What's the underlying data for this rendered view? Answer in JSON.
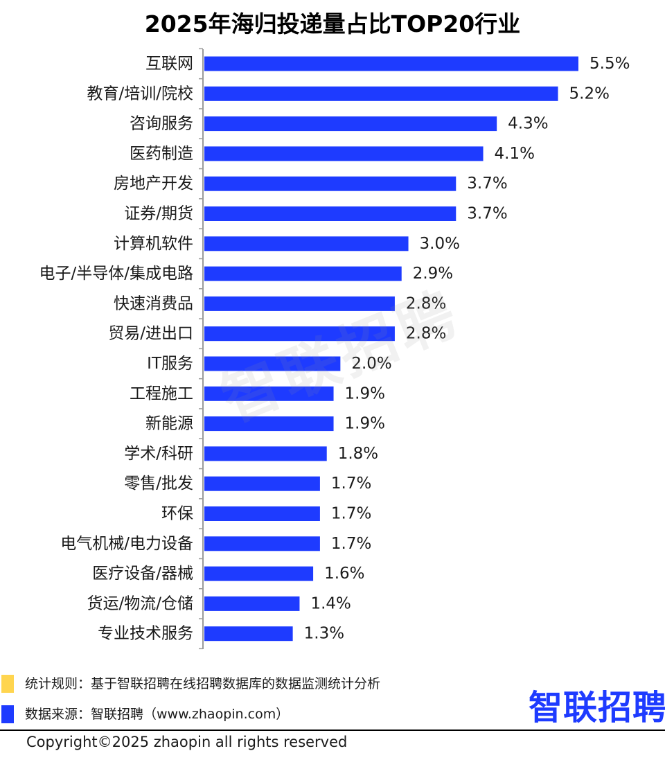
{
  "chart_data": {
    "type": "bar",
    "orientation": "horizontal",
    "title": "2025年海归投递量占比TOP20行业",
    "categories": [
      "互联网",
      "教育/培训/院校",
      "咨询服务",
      "医药制造",
      "房地产开发",
      "证券/期货",
      "计算机软件",
      "电子/半导体/集成电路",
      "快速消费品",
      "贸易/进出口",
      "IT服务",
      "工程施工",
      "新能源",
      "学术/科研",
      "零售/批发",
      "环保",
      "电气机械/电力设备",
      "医疗设备/器械",
      "货运/物流/仓储",
      "专业技术服务"
    ],
    "values": [
      5.5,
      5.2,
      4.3,
      4.1,
      3.7,
      3.7,
      3.0,
      2.9,
      2.8,
      2.8,
      2.0,
      1.9,
      1.9,
      1.8,
      1.7,
      1.7,
      1.7,
      1.6,
      1.4,
      1.3
    ],
    "value_labels": [
      "5.5%",
      "5.2%",
      "4.3%",
      "4.1%",
      "3.7%",
      "3.7%",
      "3.0%",
      "2.9%",
      "2.8%",
      "2.8%",
      "2.0%",
      "1.9%",
      "1.9%",
      "1.8%",
      "1.7%",
      "1.7%",
      "1.7%",
      "1.6%",
      "1.4%",
      "1.3%"
    ],
    "xlim": [
      0,
      5.5
    ],
    "unit": "%",
    "grid": false,
    "bar_color": "#1e3bff"
  },
  "watermark": "智联招聘",
  "notes": [
    {
      "text": "统计规则：基于智联招聘在线招聘数据库的数据监测统计分析",
      "color": "#ffd54f"
    },
    {
      "text": "数据来源：智联招聘（www.zhaopin.com）",
      "color": "#1e3bff"
    }
  ],
  "brand": "智联招聘",
  "copyright": "Copyright©2025 zhaopin all rights reserved"
}
